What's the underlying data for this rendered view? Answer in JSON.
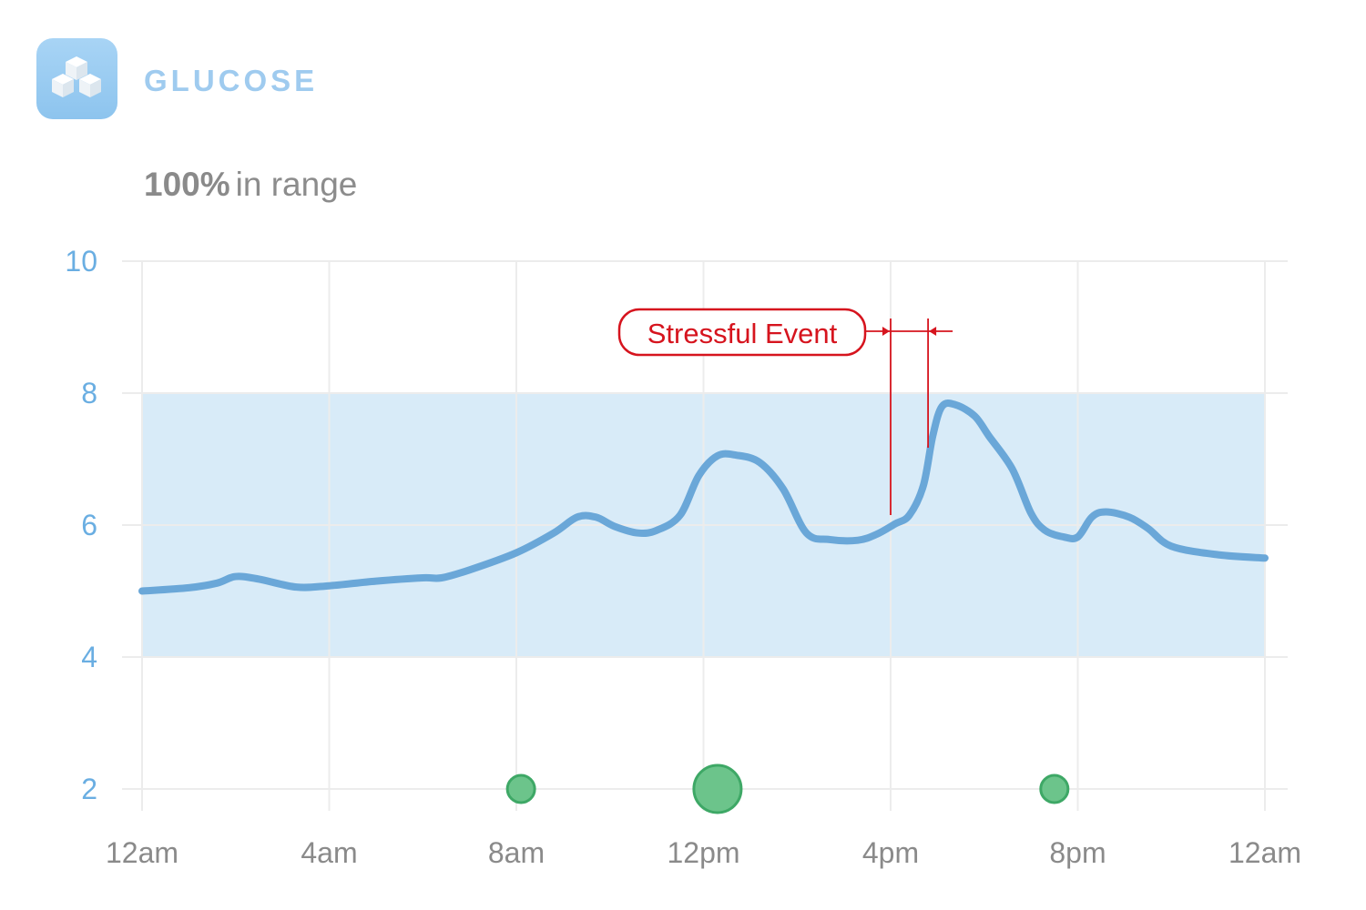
{
  "header": {
    "app_icon": "sugar-cubes-icon",
    "title": "GLUCOSE",
    "summary_value": "100%",
    "summary_text": "in range"
  },
  "colors": {
    "line": "#6aa7d8",
    "range_band": "#d8ebf8",
    "range_border": "#c3ddf1",
    "grid": "#ececec",
    "y_tick": "#6aaee2",
    "x_tick": "#8a8a8a",
    "event_marker": "#6cc48b",
    "event_marker_stroke": "#3ea866",
    "annotation": "#d6141e"
  },
  "chart_data": {
    "type": "line",
    "title": "GLUCOSE",
    "xlabel": "",
    "ylabel": "",
    "x_unit": "hours",
    "xlim": [
      0,
      24
    ],
    "ylim": [
      2,
      10
    ],
    "x_ticks": [
      {
        "value": 0,
        "label": "12am"
      },
      {
        "value": 4,
        "label": "4am"
      },
      {
        "value": 8,
        "label": "8am"
      },
      {
        "value": 12,
        "label": "12pm"
      },
      {
        "value": 16,
        "label": "4pm"
      },
      {
        "value": 20,
        "label": "8pm"
      },
      {
        "value": 24,
        "label": "12am"
      }
    ],
    "y_ticks": [
      {
        "value": 10,
        "label": "10"
      },
      {
        "value": 8,
        "label": "8"
      },
      {
        "value": 6,
        "label": "6"
      },
      {
        "value": 4,
        "label": "4"
      },
      {
        "value": 2,
        "label": "2"
      }
    ],
    "target_range": [
      4,
      8
    ],
    "series": [
      {
        "name": "Glucose",
        "x": [
          0,
          1,
          1.6,
          2,
          2.5,
          3.3,
          4,
          5,
          6,
          6.4,
          7,
          8,
          8.8,
          9.3,
          9.7,
          10.1,
          10.6,
          11,
          11.5,
          11.9,
          12.3,
          12.7,
          13.2,
          13.7,
          14.2,
          14.7,
          15.3,
          15.7,
          16.1,
          16.4,
          16.7,
          16.9,
          17.1,
          17.4,
          17.8,
          18.1,
          18.6,
          19.0,
          19.3,
          19.7,
          20.0,
          20.3,
          20.6,
          21.1,
          21.5,
          22,
          23,
          24
        ],
        "y": [
          5.0,
          5.05,
          5.12,
          5.22,
          5.18,
          5.06,
          5.08,
          5.15,
          5.2,
          5.2,
          5.32,
          5.58,
          5.88,
          6.12,
          6.12,
          5.98,
          5.88,
          5.92,
          6.15,
          6.75,
          7.05,
          7.06,
          6.95,
          6.55,
          5.88,
          5.78,
          5.77,
          5.86,
          6.02,
          6.15,
          6.6,
          7.35,
          7.8,
          7.82,
          7.65,
          7.35,
          6.85,
          6.18,
          5.92,
          5.82,
          5.82,
          6.12,
          6.2,
          6.12,
          5.95,
          5.68,
          5.55,
          5.5
        ]
      }
    ],
    "event_markers": [
      {
        "x": 8.1,
        "y": 2,
        "size": "small"
      },
      {
        "x": 12.3,
        "y": 2,
        "size": "large"
      },
      {
        "x": 19.5,
        "y": 2,
        "size": "small"
      }
    ],
    "annotations": [
      {
        "text": "Stressful Event",
        "x_start": 16.0,
        "x_end": 16.8
      }
    ]
  }
}
